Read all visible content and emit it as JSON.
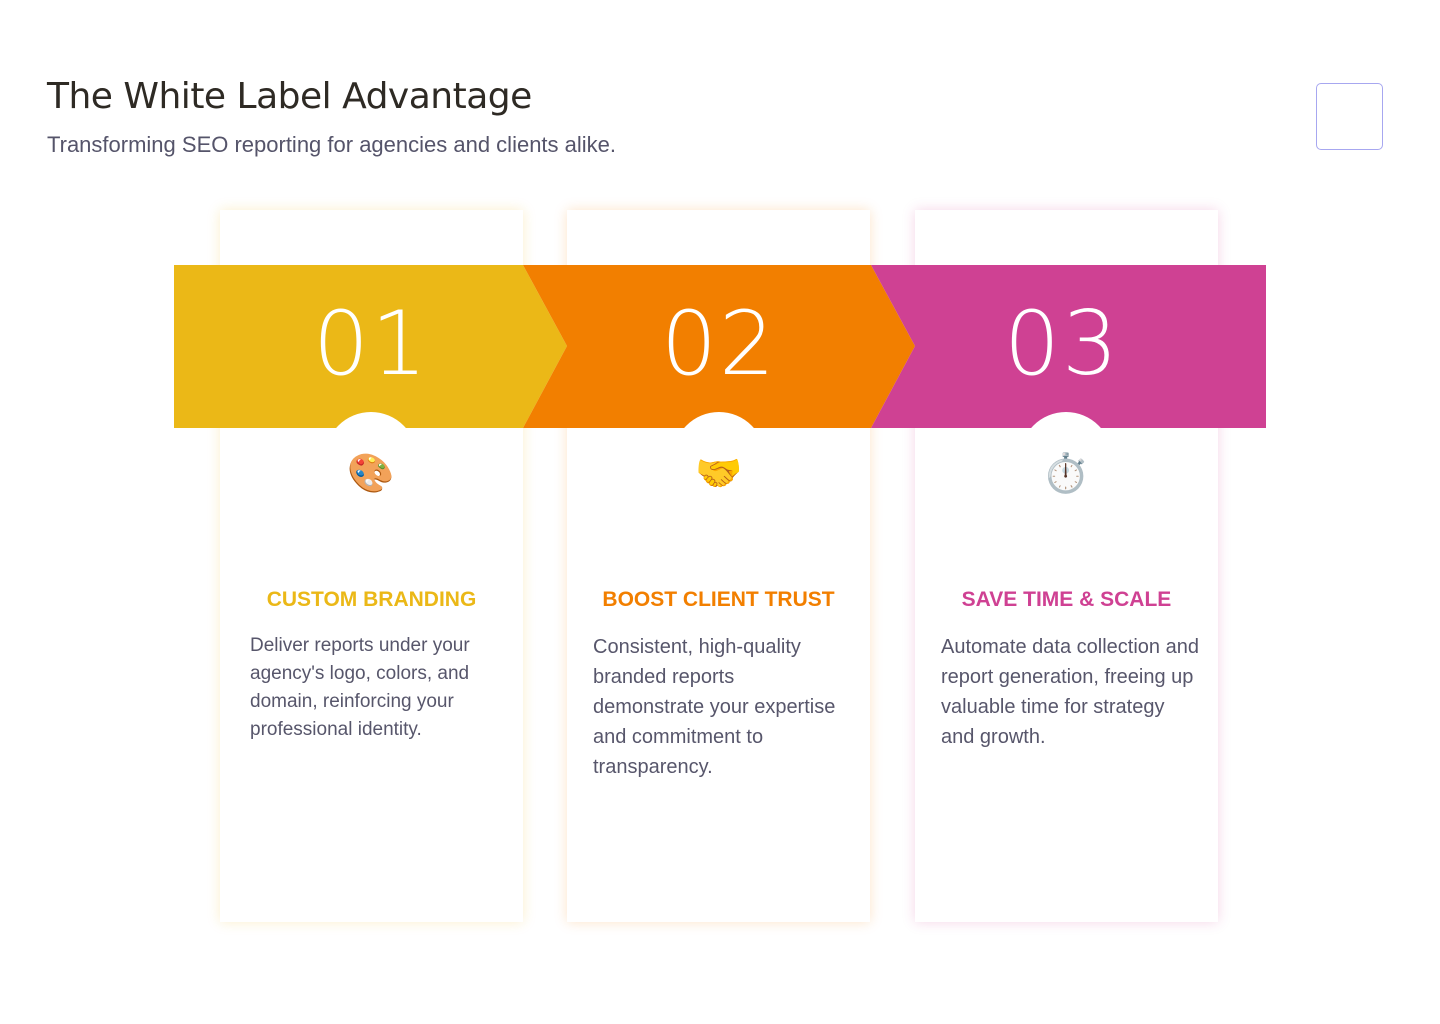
{
  "header": {
    "title": "The White Label Advantage",
    "subtitle": "Transforming SEO reporting for agencies and clients alike."
  },
  "colors": {
    "step1": "#ebb817",
    "step2": "#f27f00",
    "step3": "#cf4193"
  },
  "steps": [
    {
      "number": "01",
      "icon": "artist-palette-icon",
      "emoji": "🎨",
      "title": "CUSTOM BRANDING",
      "description": "Deliver reports under your agency's logo, colors, and domain, reinforcing your professional identity."
    },
    {
      "number": "02",
      "icon": "handshake-icon",
      "emoji": "🤝",
      "title": "BOOST CLIENT TRUST",
      "description": "Consistent, high-quality branded reports demonstrate your expertise and commitment to transparency."
    },
    {
      "number": "03",
      "icon": "stopwatch-icon",
      "emoji": "⏱️",
      "title": "SAVE TIME & SCALE",
      "description": "Automate data collection and report generation, freeing up valuable time for strategy and growth."
    }
  ]
}
